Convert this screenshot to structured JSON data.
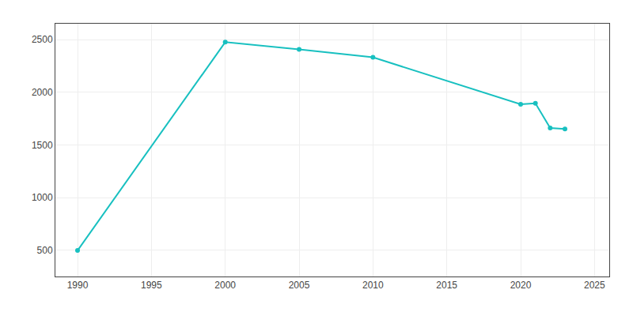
{
  "chart_data": {
    "type": "line",
    "x": [
      1990,
      2000,
      2005,
      2010,
      2020,
      2021,
      2022,
      2023
    ],
    "values": [
      497,
      2475,
      2407,
      2331,
      1885,
      1895,
      1660,
      1650
    ],
    "color": "#18C0C0",
    "marker": "circle",
    "xlim": [
      1988.5,
      2026
    ],
    "ylim": [
      250,
      2650
    ],
    "xticks": [
      1990,
      1995,
      2000,
      2005,
      2010,
      2015,
      2020,
      2025
    ],
    "yticks": [
      500,
      1000,
      1500,
      2000,
      2500
    ],
    "grid": true
  }
}
